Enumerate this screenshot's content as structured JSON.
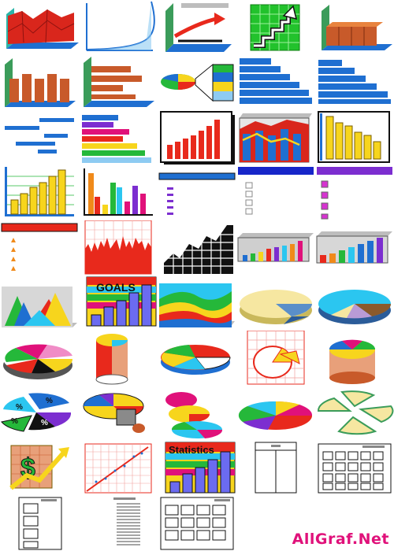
{
  "cell_labels": {
    "goals": "GOALS",
    "statistics": "Statistics"
  },
  "watermark": "AllGraf.Net",
  "colors": {
    "red": "#e8291c",
    "blue": "#1f6fd1",
    "yellow": "#f7d51d",
    "green": "#25b83a",
    "purple": "#6b3fd8",
    "orange": "#f08a1a",
    "grey": "#8a8a8a",
    "watermark": "#e0117a"
  }
}
